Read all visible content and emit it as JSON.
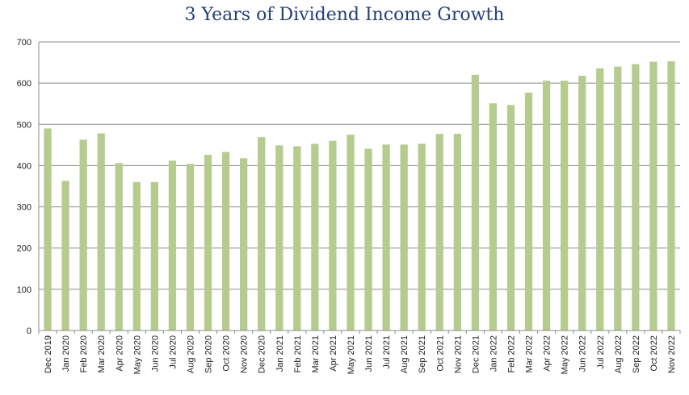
{
  "chart_data": {
    "type": "bar",
    "title": "3 Years of Dividend Income Growth",
    "xlabel": "",
    "ylabel": "",
    "ylim": [
      0,
      700
    ],
    "yticks": [
      0,
      100,
      200,
      300,
      400,
      500,
      600,
      700
    ],
    "grid": true,
    "legend": "none",
    "bar_color": "#b5cc8e",
    "grid_color": "#8c8c8c",
    "categories": [
      "Dec 2019",
      "Jan 2020",
      "Feb 2020",
      "Mar 2020",
      "Apr 2020",
      "May 2020",
      "Jun 2020",
      "Jul 2020",
      "Aug 2020",
      "Sep 2020",
      "Oct 2020",
      "Nov 2020",
      "Dec 2020",
      "Jan 2021",
      "Feb 2021",
      "Mar 2021",
      "Apr 2021",
      "May 2021",
      "Jun 2021",
      "Jul 2021",
      "Aug 2021",
      "Sep 2021",
      "Oct 2021",
      "Nov 2021",
      "Dec 2021",
      "Jan 2022",
      "Feb 2022",
      "Mar 2022",
      "Apr 2022",
      "May 2022",
      "Jun 2022",
      "Jul 2022",
      "Aug 2022",
      "Sep 2022",
      "Oct 2022",
      "Nov 2022"
    ],
    "values": [
      490,
      363,
      463,
      478,
      406,
      360,
      360,
      412,
      404,
      426,
      433,
      418,
      469,
      449,
      447,
      453,
      460,
      475,
      441,
      451,
      451,
      453,
      477,
      477,
      620,
      551,
      547,
      577,
      606,
      606,
      618,
      636,
      640,
      646,
      652,
      653
    ]
  }
}
